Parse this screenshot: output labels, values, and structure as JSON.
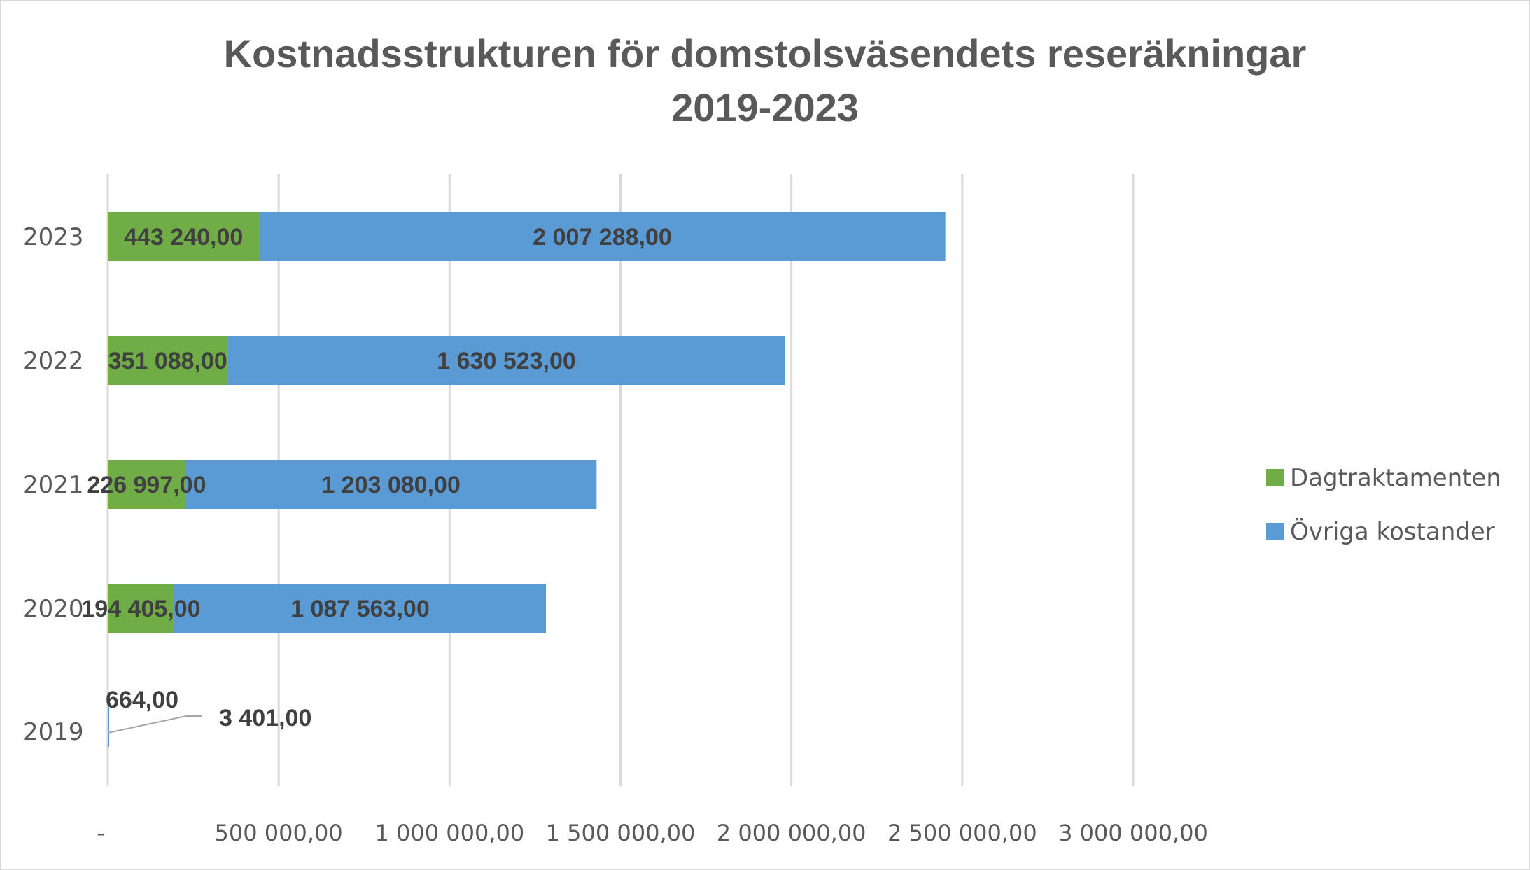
{
  "chart_data": {
    "type": "bar",
    "orientation": "horizontal",
    "stacked": true,
    "title_lines": [
      "Kostnadsstrukturen för domstolsväsendets reseräkningar",
      "2019-2023"
    ],
    "categories": [
      "2019",
      "2020",
      "2021",
      "2022",
      "2023"
    ],
    "series": [
      {
        "name": "Dagtraktamenten",
        "color": "#70ad47",
        "values": [
          664,
          194405,
          226997,
          351088,
          443240
        ],
        "labels": [
          "664,00",
          "194 405,00",
          "226 997,00",
          "351 088,00",
          "443 240,00"
        ]
      },
      {
        "name": "Övriga kostander",
        "color": "#5b9bd5",
        "values": [
          3401,
          1087563,
          1203080,
          1630523,
          2007288
        ],
        "labels": [
          "3 401,00",
          "1 087 563,00",
          "1 203 080,00",
          "1 630 523,00",
          "2 007 288,00"
        ]
      }
    ],
    "x_axis": {
      "min": 0,
      "max": 3000000,
      "ticks": [
        0,
        500000,
        1000000,
        1500000,
        2000000,
        2500000,
        3000000
      ],
      "tick_labels": [
        "-",
        "500 000,00",
        "1 000 000,00",
        "1 500 000,00",
        "2 000 000,00",
        "2 500 000,00",
        "3 000 000,00"
      ]
    },
    "gridlines": true,
    "gridline_color": "#d9d9d9",
    "legend_position": "right"
  }
}
